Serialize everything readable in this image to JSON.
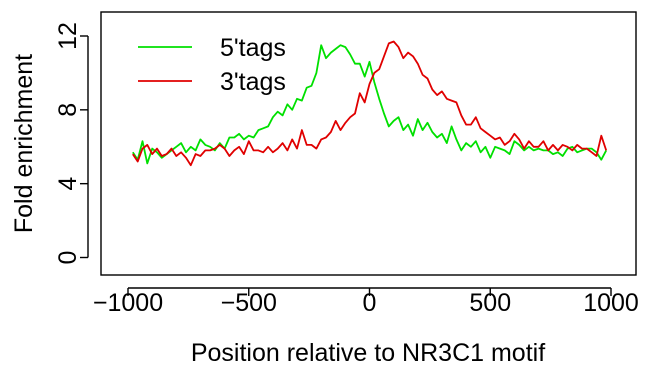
{
  "chart_data": {
    "type": "line",
    "title": "",
    "xlabel": "Position relative to NR3C1 motif",
    "ylabel": "Fold enrichment",
    "xlim": [
      -1000,
      1000
    ],
    "ylim": [
      0,
      13
    ],
    "x_ticks": [
      -1000,
      -500,
      0,
      500,
      1000
    ],
    "x_tick_labels": [
      "−1000",
      "−500",
      "0",
      "500",
      "1000"
    ],
    "y_ticks": [
      0,
      4,
      8,
      12
    ],
    "y_tick_labels": [
      "0",
      "4",
      "8",
      "12"
    ],
    "grid": false,
    "legend_position": "top-left",
    "series": [
      {
        "name": "5'tags",
        "color": "#00e000",
        "x": [
          -980,
          -960,
          -940,
          -920,
          -900,
          -880,
          -860,
          -840,
          -820,
          -800,
          -780,
          -760,
          -740,
          -720,
          -700,
          -680,
          -660,
          -640,
          -620,
          -600,
          -580,
          -560,
          -540,
          -520,
          -500,
          -480,
          -460,
          -440,
          -420,
          -400,
          -380,
          -360,
          -340,
          -320,
          -300,
          -280,
          -260,
          -240,
          -220,
          -200,
          -180,
          -160,
          -140,
          -120,
          -100,
          -80,
          -60,
          -40,
          -20,
          0,
          20,
          40,
          60,
          80,
          100,
          120,
          140,
          160,
          180,
          200,
          220,
          240,
          260,
          280,
          300,
          320,
          340,
          360,
          380,
          400,
          420,
          440,
          460,
          480,
          500,
          520,
          540,
          560,
          580,
          600,
          620,
          640,
          660,
          680,
          700,
          720,
          740,
          760,
          780,
          800,
          820,
          840,
          860,
          880,
          900,
          920,
          940,
          960,
          980
        ],
        "values": [
          5.7,
          5.3,
          6.3,
          5.1,
          5.9,
          5.7,
          5.4,
          5.6,
          5.8,
          6.0,
          6.2,
          5.7,
          6.0,
          5.8,
          6.4,
          6.1,
          6.0,
          5.8,
          6.2,
          5.9,
          6.5,
          6.5,
          6.7,
          6.4,
          6.6,
          6.5,
          6.9,
          7.0,
          7.1,
          7.6,
          7.9,
          7.7,
          8.3,
          8.0,
          8.6,
          8.5,
          9.2,
          9.3,
          10.0,
          11.5,
          10.8,
          11.1,
          11.3,
          11.5,
          11.4,
          11.0,
          10.5,
          10.5,
          9.8,
          10.6,
          9.5,
          8.6,
          7.8,
          7.1,
          7.4,
          7.6,
          6.9,
          7.2,
          6.6,
          7.5,
          6.9,
          7.3,
          6.8,
          6.5,
          6.7,
          6.2,
          7.1,
          6.4,
          5.8,
          6.2,
          6.0,
          6.3,
          5.7,
          6.0,
          5.4,
          6.0,
          5.9,
          5.8,
          5.6,
          6.3,
          6.1,
          5.8,
          6.0,
          5.8,
          5.9,
          5.8,
          5.8,
          5.6,
          5.7,
          5.5,
          5.9,
          6.0,
          5.7,
          5.8,
          5.9,
          5.9,
          5.7,
          5.3,
          5.8
        ]
      },
      {
        "name": "3'tags",
        "color": "#e00000",
        "x": [
          -980,
          -960,
          -940,
          -920,
          -900,
          -880,
          -860,
          -840,
          -820,
          -800,
          -780,
          -760,
          -740,
          -720,
          -700,
          -680,
          -660,
          -640,
          -620,
          -600,
          -580,
          -560,
          -540,
          -520,
          -500,
          -480,
          -460,
          -440,
          -420,
          -400,
          -380,
          -360,
          -340,
          -320,
          -300,
          -280,
          -260,
          -240,
          -220,
          -200,
          -180,
          -160,
          -140,
          -120,
          -100,
          -80,
          -60,
          -40,
          -20,
          0,
          20,
          40,
          60,
          80,
          100,
          120,
          140,
          160,
          180,
          200,
          220,
          240,
          260,
          280,
          300,
          320,
          340,
          360,
          380,
          400,
          420,
          440,
          460,
          480,
          500,
          520,
          540,
          560,
          580,
          600,
          620,
          640,
          660,
          680,
          700,
          720,
          740,
          760,
          780,
          800,
          820,
          840,
          860,
          880,
          900,
          920,
          940,
          960,
          980
        ],
        "values": [
          5.6,
          5.2,
          5.9,
          6.1,
          5.6,
          5.9,
          5.5,
          5.6,
          5.9,
          5.5,
          5.7,
          5.4,
          5.0,
          5.6,
          5.5,
          5.8,
          5.8,
          5.9,
          6.1,
          5.9,
          5.5,
          5.8,
          6.0,
          5.6,
          6.3,
          5.8,
          5.8,
          5.7,
          6.0,
          5.7,
          5.9,
          6.2,
          5.8,
          6.4,
          5.9,
          6.9,
          6.1,
          6.1,
          5.9,
          6.4,
          6.5,
          6.8,
          7.4,
          6.9,
          7.3,
          7.6,
          7.8,
          8.9,
          8.4,
          9.4,
          10.0,
          10.2,
          10.9,
          11.6,
          11.7,
          11.4,
          10.8,
          11.1,
          10.9,
          10.5,
          9.9,
          9.7,
          9.1,
          8.8,
          9.0,
          8.6,
          8.5,
          8.4,
          7.7,
          7.2,
          7.2,
          7.6,
          7.0,
          6.8,
          6.6,
          6.4,
          6.5,
          6.1,
          6.3,
          6.7,
          6.4,
          5.9,
          6.3,
          6.0,
          6.0,
          6.3,
          5.8,
          6.1,
          5.8,
          6.1,
          6.0,
          5.8,
          6.1,
          5.9,
          5.9,
          5.7,
          5.5,
          6.6,
          5.8
        ]
      }
    ]
  }
}
